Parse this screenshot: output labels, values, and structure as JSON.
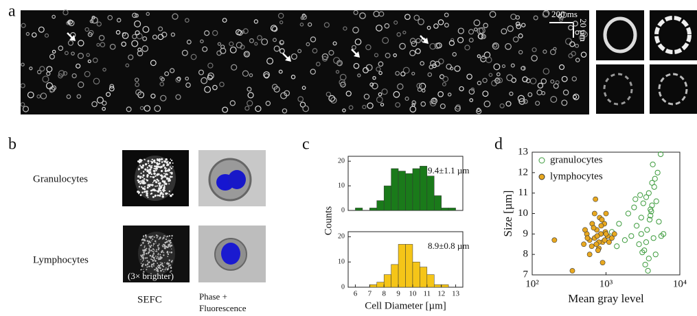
{
  "panel_labels": [
    "a",
    "b",
    "c",
    "d"
  ],
  "panel_a": {
    "time_scale": "200 ms",
    "length_scale": "20 µm"
  },
  "panel_b": {
    "rows": [
      "Granulocytes",
      "Lymphocytes"
    ],
    "brightness_note": "(3× brighter)",
    "columns": [
      "SEFC",
      "Phase +",
      "Fluorescence"
    ]
  },
  "chart_data": [
    {
      "type": "histogram",
      "y_label": "Counts",
      "annotation": "9.4±1.1 µm",
      "color": "#1a7a1a",
      "bins": [
        6,
        6.5,
        7,
        7.5,
        8,
        8.5,
        9,
        9.5,
        10,
        10.5,
        11,
        11.5,
        12,
        12.5,
        13
      ],
      "values": [
        1,
        0,
        1,
        4,
        10,
        17,
        16,
        15,
        17,
        18,
        14,
        6,
        1,
        1
      ],
      "xlim": [
        5.5,
        13.5
      ],
      "ylim": [
        0,
        22
      ],
      "yticks": [
        0,
        10,
        20
      ]
    },
    {
      "type": "histogram",
      "x_label": "Cell Diameter [µm]",
      "annotation": "8.9±0.8 µm",
      "color": "#f5c518",
      "bins": [
        6,
        6.5,
        7,
        7.5,
        8,
        8.5,
        9,
        9.5,
        10,
        10.5,
        11,
        11.5,
        12,
        12.5,
        13
      ],
      "values": [
        0,
        0,
        1,
        2,
        5,
        9,
        17,
        17,
        10,
        8,
        5,
        1,
        1,
        0
      ],
      "xlim": [
        5.5,
        13.5
      ],
      "ylim": [
        0,
        22
      ],
      "yticks": [
        0,
        10,
        20
      ],
      "xticks": [
        6,
        7,
        8,
        9,
        10,
        11,
        12,
        13
      ]
    },
    {
      "type": "scatter",
      "x_label": "Mean gray level",
      "y_label": "Size [µm]",
      "log_x": true,
      "legend": "upper left",
      "xlim": [
        100,
        10000
      ],
      "ylim": [
        7,
        13
      ],
      "xticks": [
        {
          "value": 100,
          "label": "10²"
        },
        {
          "value": 1000,
          "label": "10³"
        },
        {
          "value": 10000,
          "label": "10⁴"
        }
      ],
      "yticks": [
        7,
        8,
        9,
        10,
        11,
        12,
        13
      ],
      "series": [
        {
          "name": "granulocytes",
          "color": "#3a9a3a",
          "filled": false,
          "x": [
            1500,
            2000,
            2500,
            3000,
            3200,
            3500,
            3800,
            4000,
            4200,
            4500,
            5000,
            5500,
            6000,
            2800,
            3300,
            3600,
            3900,
            4100,
            4400,
            4700,
            2200,
            2600,
            3100,
            3400,
            3700,
            4300,
            4600,
            5200,
            1800,
            1200,
            1400,
            2400,
            3000,
            3500,
            4000,
            4800,
            5600,
            3800,
            4200,
            2900
          ],
          "y": [
            9.5,
            10.0,
            10.7,
            9.8,
            10.5,
            10.8,
            11.0,
            10.2,
            10.4,
            11.3,
            12.0,
            12.9,
            9.0,
            8.5,
            8.2,
            9.2,
            9.7,
            10.1,
            8.8,
            8.0,
            8.9,
            9.4,
            8.1,
            7.5,
            7.2,
            12.4,
            11.7,
            9.6,
            8.7,
            9.1,
            8.4,
            10.3,
            9.0,
            8.6,
            9.9,
            10.6,
            8.9,
            7.8,
            11.5,
            10.9
          ]
        },
        {
          "name": "lymphocytes",
          "color": "#e8a820",
          "filled": true,
          "x": [
            200,
            350,
            500,
            550,
            600,
            650,
            700,
            720,
            750,
            800,
            820,
            850,
            900,
            950,
            1000,
            1050,
            1100,
            600,
            680,
            780,
            880,
            980,
            520,
            640,
            760,
            860,
            960,
            1200,
            1300,
            700,
            800,
            900,
            1000,
            560,
            740
          ],
          "y": [
            8.7,
            7.2,
            8.5,
            9.0,
            8.7,
            9.5,
            8.8,
            10.7,
            9.2,
            8.3,
            9.8,
            9.0,
            8.6,
            9.5,
            10.0,
            8.9,
            8.6,
            8.0,
            9.3,
            8.2,
            9.7,
            9.1,
            9.2,
            8.4,
            8.9,
            9.4,
            8.7,
            8.8,
            9.0,
            10.0,
            8.6,
            7.6,
            9.0,
            8.8,
            8.5
          ]
        }
      ]
    }
  ]
}
